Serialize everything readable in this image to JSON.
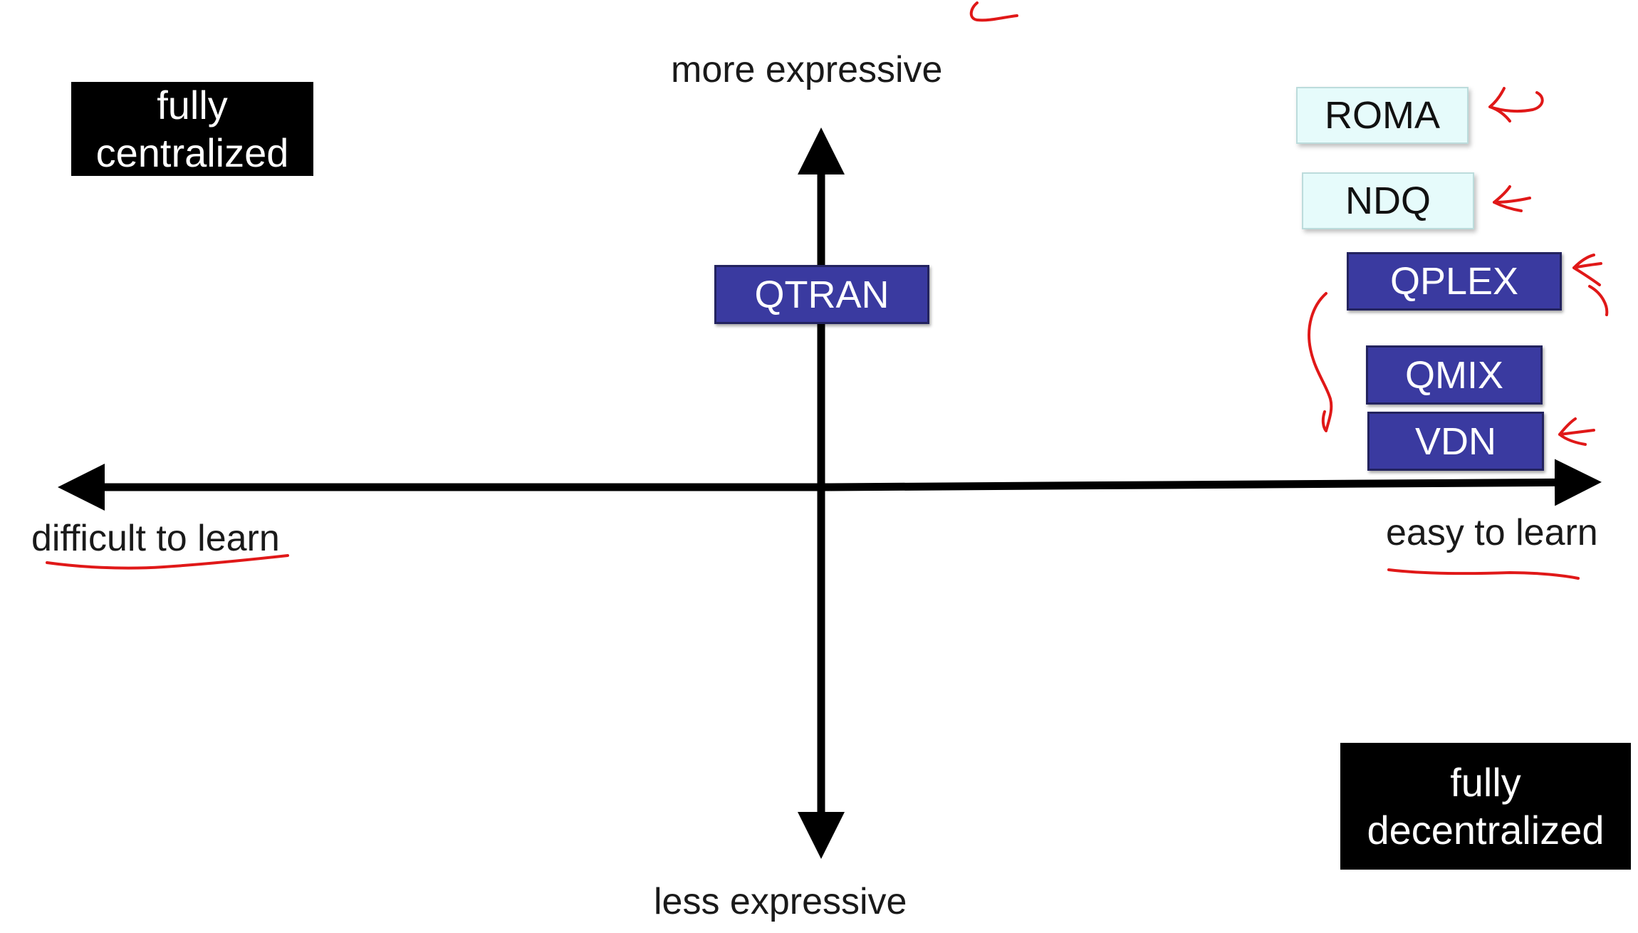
{
  "axes": {
    "top_label": "more expressive",
    "bottom_label": "less expressive",
    "left_label": "difficult to learn",
    "right_label": "easy to learn"
  },
  "corners": {
    "top_left": [
      "fully",
      "centralized"
    ],
    "bottom_right": [
      "fully",
      "decentralized"
    ]
  },
  "methods": [
    {
      "name": "QTRAN",
      "style": "dark"
    },
    {
      "name": "ROMA",
      "style": "light"
    },
    {
      "name": "NDQ",
      "style": "light"
    },
    {
      "name": "QPLEX",
      "style": "dark"
    },
    {
      "name": "QMIX",
      "style": "dark"
    },
    {
      "name": "VDN",
      "style": "dark"
    }
  ],
  "colors": {
    "dark_box": "#3a3aa0",
    "light_box": "#e6fbfb",
    "annotation_ink": "#e01818",
    "axis": "#000000"
  }
}
